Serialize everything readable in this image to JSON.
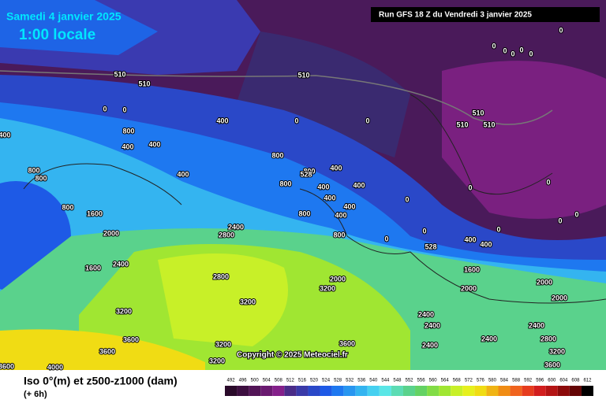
{
  "header": {
    "date": "Samedi 4 janvier 2025",
    "time": "1:00 locale",
    "run": "Run GFS 18 Z du Vendredi 3 janvier 2025"
  },
  "footer": {
    "title": "Iso 0°(m) et z500-z1000 (dam)",
    "lead": "(+ 6h)",
    "copyright": "Copyright © 2025 Meteociel.fr"
  },
  "map_labels": [
    "510",
    "510",
    "510",
    "510",
    "510",
    "510",
    "400",
    "400",
    "400",
    "400",
    "400",
    "400",
    "400",
    "400",
    "400",
    "400",
    "400",
    "400",
    "400",
    "800",
    "800",
    "800",
    "800",
    "800",
    "800",
    "800",
    "800",
    "800",
    "1600",
    "1600",
    "1600",
    "2000",
    "2000",
    "2000",
    "2000",
    "2000",
    "2400",
    "2400",
    "2400",
    "2400",
    "2400",
    "2400",
    "2400",
    "2800",
    "2800",
    "2800",
    "3200",
    "3200",
    "3200",
    "3200",
    "3200",
    "3200",
    "3600",
    "3600",
    "3600",
    "3600",
    "3600",
    "4000",
    "0",
    "0",
    "0",
    "0",
    "0",
    "0",
    "0",
    "0",
    "0",
    "0",
    "0",
    "0",
    "0",
    "0",
    "0",
    "0",
    "0",
    "0",
    "528",
    "528"
  ],
  "legend": {
    "ticks": [
      492,
      496,
      500,
      504,
      508,
      512,
      516,
      520,
      524,
      528,
      532,
      536,
      540,
      544,
      548,
      552,
      556,
      560,
      564,
      568,
      572,
      576,
      580,
      584,
      588,
      592,
      596,
      600,
      604,
      608,
      612
    ],
    "colors": [
      "#2a0a2a",
      "#3d0f40",
      "#521456",
      "#6a1a70",
      "#84208a",
      "#4a2c88",
      "#3a3aa8",
      "#2a48c8",
      "#1e5ae6",
      "#1e78f0",
      "#2896f0",
      "#34b4f0",
      "#46d0f0",
      "#5ae6e6",
      "#5cdcb4",
      "#5ad28c",
      "#64d264",
      "#82dc46",
      "#a0e632",
      "#c8f028",
      "#e6f01e",
      "#f0dc14",
      "#f0b414",
      "#f08c14",
      "#f0641e",
      "#e63c1e",
      "#d21e1e",
      "#b41414",
      "#8c0a0a",
      "#640505",
      "#000000"
    ]
  }
}
